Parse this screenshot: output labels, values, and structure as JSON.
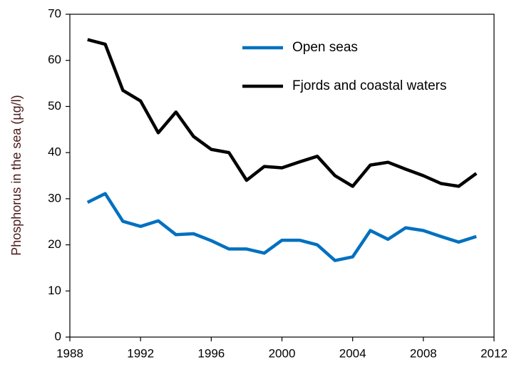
{
  "chart_data": {
    "type": "line",
    "y_label": "Phosphorus in the sea (µg/l)",
    "x": [
      1989,
      1990,
      1991,
      1992,
      1993,
      1994,
      1995,
      1996,
      1997,
      1998,
      1999,
      2000,
      2001,
      2002,
      2003,
      2004,
      2005,
      2006,
      2007,
      2008,
      2009,
      2010,
      2011
    ],
    "series": [
      {
        "name": "Open seas",
        "color": "#0070c0",
        "values": [
          29.2,
          31.1,
          25.1,
          24.0,
          25.2,
          22.2,
          22.4,
          20.9,
          19.1,
          19.1,
          18.2,
          21.0,
          21.0,
          20.0,
          16.6,
          17.4,
          23.1,
          21.2,
          23.7,
          23.1,
          21.8,
          20.6,
          21.8
        ]
      },
      {
        "name": "Fjords and coastal waters",
        "color": "#000000",
        "values": [
          64.5,
          63.5,
          53.5,
          51.2,
          44.3,
          48.8,
          43.5,
          40.7,
          40.0,
          34.0,
          37.0,
          36.7,
          38.0,
          39.2,
          35.0,
          32.7,
          37.3,
          37.9,
          36.4,
          35.0,
          33.3,
          32.7,
          35.5
        ]
      }
    ],
    "xlim": [
      1988,
      2012
    ],
    "xticks": [
      1988,
      1992,
      1996,
      2000,
      2004,
      2008,
      2012
    ],
    "ylim": [
      0,
      70
    ],
    "yticks": [
      0,
      10,
      20,
      30,
      40,
      50,
      60,
      70
    ]
  }
}
